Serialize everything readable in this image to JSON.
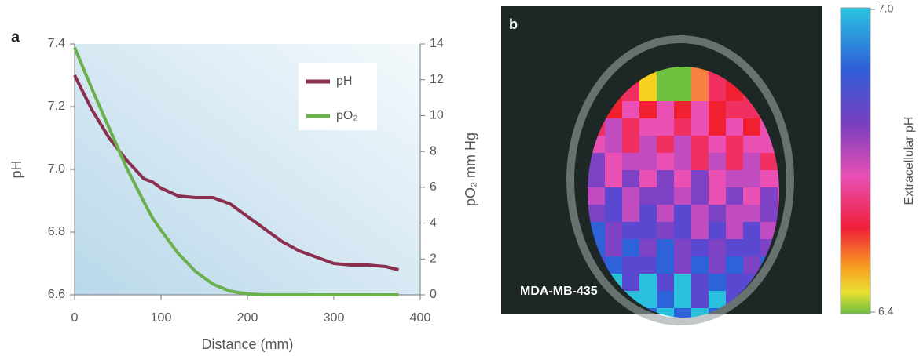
{
  "chart_data": {
    "type": "line",
    "panel_label": "a",
    "x": [
      0,
      20,
      40,
      60,
      80,
      90,
      100,
      120,
      140,
      160,
      180,
      200,
      220,
      240,
      260,
      280,
      300,
      320,
      340,
      360,
      375
    ],
    "series": [
      {
        "name": "pH",
        "color": "#8b2f4e",
        "values": [
          7.3,
          7.19,
          7.1,
          7.03,
          6.97,
          6.96,
          6.94,
          6.915,
          6.91,
          6.91,
          6.89,
          6.85,
          6.81,
          6.77,
          6.74,
          6.72,
          6.7,
          6.695,
          6.695,
          6.69,
          6.68
        ]
      },
      {
        "name": "pO₂",
        "color": "#6ab04c",
        "axis": "y2",
        "values": [
          13.8,
          11.5,
          9.3,
          7.1,
          5.2,
          4.3,
          3.6,
          2.3,
          1.3,
          0.6,
          0.2,
          0.05,
          0,
          0,
          0,
          0,
          0,
          0,
          0,
          0,
          0
        ]
      }
    ],
    "xlabel": "Distance (mm)",
    "ylabel": "pH",
    "y2label": "pO₂ mm Hg",
    "xlim": [
      0,
      400
    ],
    "xticks": [
      0,
      100,
      200,
      300,
      400
    ],
    "ylim": [
      6.6,
      7.4
    ],
    "yticks": [
      6.6,
      6.8,
      {
        "value": 7,
        "label": "7.0"
      },
      7.2,
      7.4
    ],
    "y2lim": [
      0,
      14
    ],
    "y2ticks": [
      0,
      2,
      4,
      6,
      8,
      10,
      12,
      14
    ]
  },
  "panel_b": {
    "panel_label": "b",
    "caption": "MDA-MB-435",
    "colorbar": {
      "label": "Extracellular pH",
      "lim": [
        6.4,
        7
      ],
      "ticks": [
        {
          "value": 7,
          "label": "7.0"
        },
        6.4
      ]
    }
  }
}
